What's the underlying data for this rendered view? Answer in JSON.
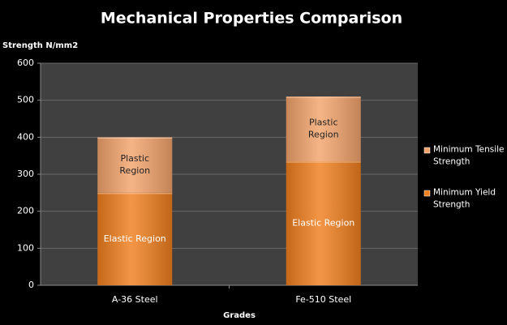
{
  "chart_data": {
    "type": "stacked_bar",
    "title": "Mechanical Properties Comparison",
    "y_label": "Strength N/mm2",
    "x_label": "Grades",
    "categories": [
      "A-36 Steel",
      "Fe-510 Steel"
    ],
    "series": [
      {
        "name": "Minimum Yield Strength",
        "color": "#f07f1e",
        "values": [
          250,
          335
        ],
        "region_labels": [
          "Elastic Region",
          "Elastic Region"
        ]
      },
      {
        "name": "Minimum Tensile Strength",
        "color": "#f3a46c",
        "values": [
          150,
          175
        ],
        "region_labels": [
          "Plastic Region",
          "Plastic Region"
        ]
      }
    ],
    "ylim": [
      0,
      600
    ],
    "yticks": [
      0,
      100,
      200,
      300,
      400,
      500,
      600
    ],
    "grid": true,
    "legend": "right"
  }
}
